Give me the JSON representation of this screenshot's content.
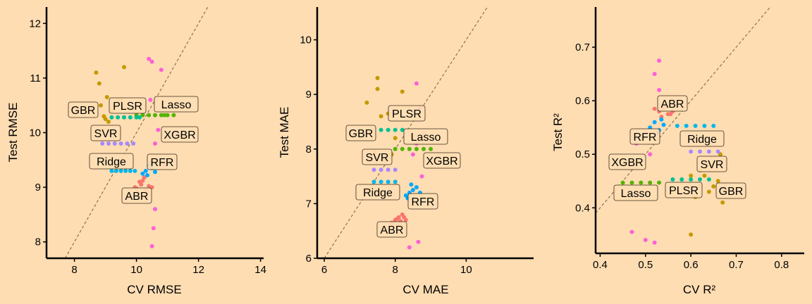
{
  "background": "#FFDDB3",
  "model_colors": {
    "ABR": "#F8766D",
    "GBR": "#C49A00",
    "Lasso": "#53B400",
    "PLSR": "#00C094",
    "Ridge": "#00B6EB",
    "RFR": "#00A9FF",
    "SVR": "#A58AFF",
    "XGBR": "#FB61D7"
  },
  "chart_data": [
    {
      "type": "scatter",
      "title": "",
      "xlabel": "CV RMSE",
      "ylabel": "Test RMSE",
      "xlim": [
        7.1,
        14.1
      ],
      "ylim": [
        7.7,
        12.3
      ],
      "xticks": [
        8,
        10,
        12,
        14
      ],
      "yticks": [
        8,
        9,
        10,
        11,
        12
      ],
      "diagonal": true,
      "series": [
        {
          "name": "ABR",
          "x": [
            10.0,
            10.15,
            10.2,
            10.3,
            10.4,
            10.5,
            10.1,
            10.35,
            10.25,
            9.95
          ],
          "y": [
            8.98,
            9.05,
            9.12,
            8.95,
            9.02,
            9.0,
            9.1,
            8.92,
            9.18,
            9.0
          ]
        },
        {
          "name": "GBR",
          "x": [
            8.7,
            8.8,
            8.85,
            9.0,
            9.1,
            9.5,
            9.6,
            9.3,
            8.95,
            9.05,
            9.2,
            9.4
          ],
          "y": [
            11.1,
            10.9,
            10.5,
            10.25,
            10.2,
            10.6,
            11.2,
            10.5,
            10.3,
            10.65,
            10.4,
            10.6
          ]
        },
        {
          "name": "Lasso",
          "x": [
            10.0,
            10.2,
            10.4,
            10.6,
            10.8,
            11.0,
            11.2,
            10.9
          ],
          "y": [
            10.32,
            10.32,
            10.32,
            10.32,
            10.32,
            10.32,
            10.32,
            10.32
          ]
        },
        {
          "name": "PLSR",
          "x": [
            9.2,
            9.4,
            9.6,
            9.8,
            10.0,
            10.1
          ],
          "y": [
            10.28,
            10.28,
            10.28,
            10.28,
            10.28,
            10.28
          ]
        },
        {
          "name": "Ridge",
          "x": [
            9.2,
            9.35,
            9.5,
            9.65,
            9.8,
            9.95
          ],
          "y": [
            9.3,
            9.3,
            9.3,
            9.3,
            9.3,
            9.3
          ]
        },
        {
          "name": "RFR",
          "x": [
            10.2,
            10.3,
            10.4,
            10.5,
            10.6,
            10.35,
            10.45
          ],
          "y": [
            9.25,
            9.3,
            9.4,
            9.35,
            9.28,
            9.22,
            9.42
          ]
        },
        {
          "name": "SVR",
          "x": [
            8.9,
            9.1,
            9.3,
            9.5,
            9.7,
            9.9
          ],
          "y": [
            9.8,
            9.8,
            9.8,
            9.8,
            9.8,
            9.8
          ]
        },
        {
          "name": "XGBR",
          "x": [
            10.4,
            10.5,
            10.6,
            10.55,
            10.5,
            10.8,
            10.9,
            10.45,
            10.7,
            10.6
          ],
          "y": [
            11.35,
            11.3,
            8.6,
            8.25,
            7.92,
            11.15,
            9.4,
            10.6,
            10.05,
            9.8
          ]
        }
      ],
      "labels": [
        "GBR",
        "PLSR",
        "Lasso",
        "SVR",
        "XGBR",
        "Ridge",
        "RFR",
        "ABR"
      ]
    },
    {
      "type": "scatter",
      "title": "",
      "xlabel": "CV MAE",
      "ylabel": "Test MAE",
      "xlim": [
        5.8,
        11.9
      ],
      "ylim": [
        6.0,
        10.6
      ],
      "xticks": [
        6,
        8,
        10
      ],
      "yticks": [
        6,
        7,
        8,
        9,
        10
      ],
      "diagonal": true,
      "series": [
        {
          "name": "ABR",
          "x": [
            7.9,
            8.0,
            8.1,
            8.2,
            8.3,
            7.95,
            8.05,
            8.15,
            8.25,
            8.1
          ],
          "y": [
            6.65,
            6.7,
            6.75,
            6.8,
            6.7,
            6.62,
            6.72,
            6.68,
            6.75,
            6.6
          ]
        },
        {
          "name": "GBR",
          "x": [
            7.5,
            7.5,
            7.2,
            7.6,
            7.8,
            7.9,
            8.2,
            7.4,
            7.7,
            8.0
          ],
          "y": [
            9.3,
            9.1,
            8.85,
            8.6,
            8.65,
            7.9,
            9.05,
            7.95,
            7.8,
            8.2
          ]
        },
        {
          "name": "Lasso",
          "x": [
            8.0,
            8.2,
            8.4,
            8.6,
            8.8,
            9.0
          ],
          "y": [
            8.0,
            8.0,
            8.0,
            8.0,
            8.0,
            8.0
          ]
        },
        {
          "name": "PLSR",
          "x": [
            7.6,
            7.8,
            8.0,
            8.2
          ],
          "y": [
            8.35,
            8.35,
            8.35,
            8.35
          ]
        },
        {
          "name": "Ridge",
          "x": [
            7.4,
            7.6,
            7.8,
            8.0
          ],
          "y": [
            7.4,
            7.4,
            7.4,
            7.4
          ]
        },
        {
          "name": "RFR",
          "x": [
            8.3,
            8.4,
            8.5,
            8.6,
            8.7,
            8.35,
            8.45
          ],
          "y": [
            7.15,
            7.2,
            7.25,
            7.3,
            7.2,
            7.1,
            7.35
          ]
        },
        {
          "name": "SVR",
          "x": [
            7.4,
            7.6,
            7.8,
            8.0
          ],
          "y": [
            7.62,
            7.62,
            7.62,
            7.62
          ]
        },
        {
          "name": "XGBR",
          "x": [
            8.6,
            8.7,
            8.8,
            8.65,
            8.4,
            8.5,
            8.75,
            8.6
          ],
          "y": [
            9.2,
            8.75,
            8.3,
            6.3,
            6.2,
            7.9,
            7.5,
            8.1
          ]
        }
      ],
      "labels": [
        "PLSR",
        "GBR",
        "Lasso",
        "SVR",
        "XGBR",
        "Ridge",
        "RFR",
        "ABR"
      ]
    },
    {
      "type": "scatter",
      "title": "",
      "xlabel": "CV R²",
      "ylabel": "Test R²",
      "xlim": [
        0.39,
        0.85
      ],
      "ylim": [
        0.315,
        0.775
      ],
      "xticks": [
        0.4,
        0.5,
        0.6,
        0.7,
        0.8
      ],
      "yticks": [
        0.4,
        0.5,
        0.6,
        0.7
      ],
      "diagonal": true,
      "series": [
        {
          "name": "ABR",
          "x": [
            0.53,
            0.54,
            0.55,
            0.56,
            0.535,
            0.545,
            0.555,
            0.52
          ],
          "y": [
            0.58,
            0.585,
            0.575,
            0.58,
            0.57,
            0.59,
            0.575,
            0.585
          ]
        },
        {
          "name": "GBR",
          "x": [
            0.6,
            0.61,
            0.62,
            0.63,
            0.64,
            0.65,
            0.66,
            0.665,
            0.67,
            0.6,
            0.62,
            0.64
          ],
          "y": [
            0.35,
            0.42,
            0.44,
            0.46,
            0.43,
            0.44,
            0.45,
            0.5,
            0.41,
            0.46,
            0.47,
            0.48
          ]
        },
        {
          "name": "Lasso",
          "x": [
            0.45,
            0.47,
            0.49,
            0.51,
            0.53
          ],
          "y": [
            0.447,
            0.447,
            0.447,
            0.447,
            0.447
          ]
        },
        {
          "name": "PLSR",
          "x": [
            0.56,
            0.58,
            0.6,
            0.62,
            0.64
          ],
          "y": [
            0.453,
            0.453,
            0.453,
            0.453,
            0.453
          ]
        },
        {
          "name": "Ridge",
          "x": [
            0.57,
            0.59,
            0.61,
            0.63,
            0.65
          ],
          "y": [
            0.553,
            0.553,
            0.553,
            0.553,
            0.553
          ]
        },
        {
          "name": "RFR",
          "x": [
            0.51,
            0.52,
            0.53,
            0.54,
            0.525,
            0.535
          ],
          "y": [
            0.55,
            0.56,
            0.545,
            0.555,
            0.54,
            0.565
          ]
        },
        {
          "name": "SVR",
          "x": [
            0.6,
            0.62,
            0.64,
            0.66
          ],
          "y": [
            0.505,
            0.505,
            0.505,
            0.505
          ]
        },
        {
          "name": "XGBR",
          "x": [
            0.47,
            0.5,
            0.52,
            0.53,
            0.52,
            0.53,
            0.51,
            0.48
          ],
          "y": [
            0.355,
            0.34,
            0.335,
            0.675,
            0.65,
            0.62,
            0.5,
            0.52
          ]
        }
      ],
      "labels": [
        "ABR",
        "RFR",
        "Ridge",
        "XGBR",
        "SVR",
        "Lasso",
        "PLSR",
        "GBR"
      ]
    }
  ]
}
